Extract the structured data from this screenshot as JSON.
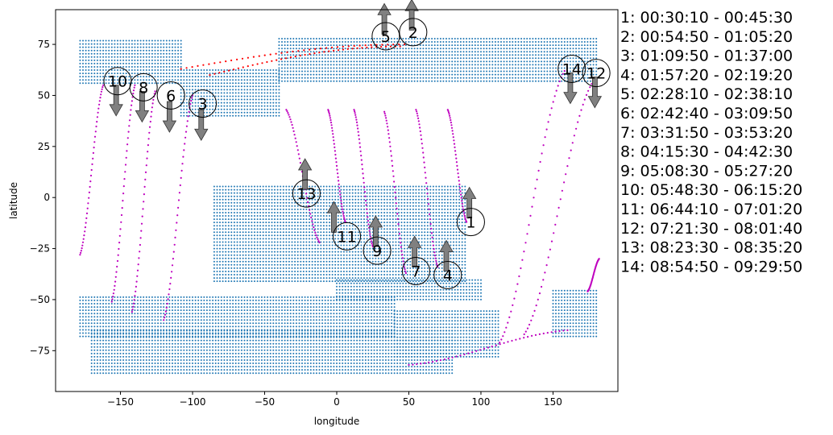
{
  "chart_data": {
    "type": "scatter",
    "xlabel": "longitude",
    "ylabel": "latitude",
    "xlim": [
      -195,
      195
    ],
    "ylim": [
      -95,
      92
    ],
    "xticks": [
      -150,
      -100,
      -50,
      0,
      50,
      100,
      150
    ],
    "yticks": [
      -75,
      -50,
      -25,
      0,
      25,
      50,
      75
    ],
    "grid": false,
    "colors": {
      "land_dots": "#1f77b4",
      "ground_track": "#bf00bf",
      "red_track": "#ff0000",
      "arrow": "#808080",
      "marker_circle": "#000000"
    },
    "land_regions": [
      {
        "lon": [
          -178,
          -108
        ],
        "lat": [
          56,
          77
        ]
      },
      {
        "lon": [
          -108,
          -40
        ],
        "lat": [
          40,
          64
        ]
      },
      {
        "lon": [
          -40,
          180
        ],
        "lat": [
          57,
          79
        ]
      },
      {
        "lon": [
          -85,
          90
        ],
        "lat": [
          -41,
          6
        ]
      },
      {
        "lon": [
          0,
          100
        ],
        "lat": [
          -50,
          -40
        ]
      },
      {
        "lon": [
          -178,
          40
        ],
        "lat": [
          -68,
          -48
        ]
      },
      {
        "lon": [
          -170,
          80
        ],
        "lat": [
          -86,
          -65
        ]
      },
      {
        "lon": [
          40,
          112
        ],
        "lat": [
          -78,
          -55
        ]
      },
      {
        "lon": [
          150,
          180
        ],
        "lat": [
          -68,
          -45
        ]
      }
    ],
    "tracks": [
      {
        "color": "magenta",
        "x": [
          -178,
          -162
        ],
        "y": [
          -28,
          55
        ]
      },
      {
        "color": "magenta",
        "x": [
          -156,
          -140
        ],
        "y": [
          -51,
          55
        ]
      },
      {
        "color": "magenta",
        "x": [
          -142,
          -126
        ],
        "y": [
          -56,
          52
        ]
      },
      {
        "color": "magenta",
        "x": [
          -120,
          -100
        ],
        "y": [
          -60,
          50
        ]
      },
      {
        "color": "magenta",
        "x": [
          -35,
          -12
        ],
        "y": [
          43,
          -22
        ]
      },
      {
        "color": "magenta",
        "x": [
          -6,
          6
        ],
        "y": [
          43,
          -12
        ]
      },
      {
        "color": "magenta",
        "x": [
          12,
          25
        ],
        "y": [
          43,
          -24
        ]
      },
      {
        "color": "magenta",
        "x": [
          33,
          48
        ],
        "y": [
          42,
          -37
        ]
      },
      {
        "color": "magenta",
        "x": [
          55,
          70
        ],
        "y": [
          43,
          -34
        ]
      },
      {
        "color": "magenta",
        "x": [
          77,
          90
        ],
        "y": [
          43,
          -12
        ]
      },
      {
        "color": "magenta",
        "x": [
          113,
          158
        ],
        "y": [
          -71,
          62
        ]
      },
      {
        "color": "magenta",
        "x": [
          130,
          178
        ],
        "y": [
          -67,
          57
        ]
      },
      {
        "color": "magenta",
        "x": [
          174,
          182
        ],
        "y": [
          -46,
          -30
        ]
      },
      {
        "color": "magenta",
        "x": [
          50,
          160
        ],
        "y": [
          -82,
          -65
        ]
      },
      {
        "color": "red",
        "x": [
          -108,
          47
        ],
        "y": [
          63,
          75
        ]
      },
      {
        "color": "red",
        "x": [
          -88,
          44
        ],
        "y": [
          60,
          74
        ]
      }
    ],
    "markers": [
      {
        "label": "1",
        "x": 93,
        "y": -12
      },
      {
        "label": "2",
        "x": 53,
        "y": 81
      },
      {
        "label": "3",
        "x": -93,
        "y": 46
      },
      {
        "label": "4",
        "x": 77,
        "y": -38
      },
      {
        "label": "5",
        "x": 34,
        "y": 79
      },
      {
        "label": "6",
        "x": -115,
        "y": 50
      },
      {
        "label": "7",
        "x": 55,
        "y": -36
      },
      {
        "label": "8",
        "x": -134,
        "y": 54
      },
      {
        "label": "9",
        "x": 28,
        "y": -26
      },
      {
        "label": "10",
        "x": -152,
        "y": 57
      },
      {
        "label": "11",
        "x": 7,
        "y": -19
      },
      {
        "label": "12",
        "x": 180,
        "y": 61
      },
      {
        "label": "13",
        "x": -21,
        "y": 2
      },
      {
        "label": "14",
        "x": 163,
        "y": 63
      }
    ],
    "arrows": [
      {
        "x": 92,
        "y0": -10,
        "y1": 5,
        "direction": "up"
      },
      {
        "x": 52,
        "y0": 82,
        "y1": 97,
        "direction": "up"
      },
      {
        "x": -94,
        "y0": 43,
        "y1": 28,
        "direction": "down"
      },
      {
        "x": 76,
        "y0": -36,
        "y1": -21,
        "direction": "up"
      },
      {
        "x": 33,
        "y0": 80,
        "y1": 95,
        "direction": "up"
      },
      {
        "x": -116,
        "y0": 47,
        "y1": 32,
        "direction": "down"
      },
      {
        "x": 54,
        "y0": -34,
        "y1": -19,
        "direction": "up"
      },
      {
        "x": -135,
        "y0": 52,
        "y1": 37,
        "direction": "down"
      },
      {
        "x": 27,
        "y0": -24,
        "y1": -9,
        "direction": "up"
      },
      {
        "x": -153,
        "y0": 55,
        "y1": 40,
        "direction": "down"
      },
      {
        "x": -2,
        "y0": -17,
        "y1": -2,
        "direction": "up"
      },
      {
        "x": 179,
        "y0": 59,
        "y1": 44,
        "direction": "down"
      },
      {
        "x": -22,
        "y0": 4,
        "y1": 19,
        "direction": "up"
      },
      {
        "x": 162,
        "y0": 61,
        "y1": 46,
        "direction": "down"
      }
    ],
    "legend": [
      "1:  00:30:10 - 00:45:30",
      "2:  00:54:50 - 01:05:20",
      "3:  01:09:50 - 01:37:00",
      "4:  01:57:20 - 02:19:20",
      "5:  02:28:10 - 02:38:10",
      "6:  02:42:40 - 03:09:50",
      "7:  03:31:50 - 03:53:20",
      "8:  04:15:30 - 04:42:30",
      "9:  05:08:30 - 05:27:20",
      "10:  05:48:30 - 06:15:20",
      "11:  06:44:10 - 07:01:20",
      "12:  07:21:30 - 08:01:40",
      "13:  08:23:30 - 08:35:20",
      "14:  08:54:50 - 09:29:50"
    ],
    "legend_placement": "right-outside"
  }
}
